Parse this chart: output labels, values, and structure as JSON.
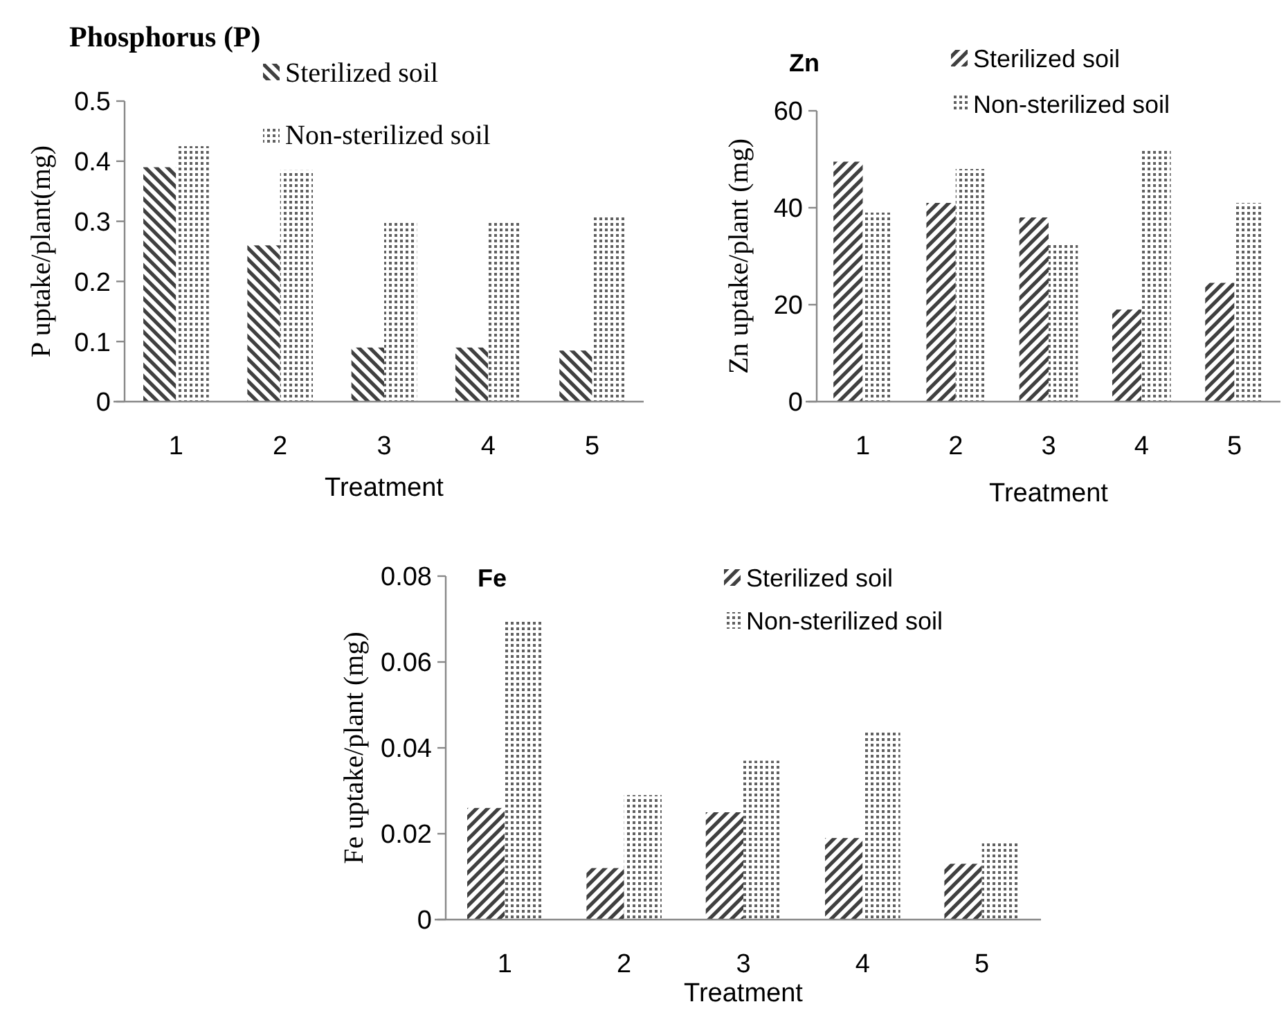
{
  "chart_data": [
    {
      "type": "bar",
      "title": "Phosphorus (P)",
      "xlabel": "Treatment",
      "ylabel": "P uptake/plant(mg)",
      "categories": [
        "1",
        "2",
        "3",
        "4",
        "5"
      ],
      "ylim": [
        0,
        0.5
      ],
      "yticks": [
        0,
        0.1,
        0.2,
        0.3,
        0.4,
        0.5
      ],
      "legend": "top right",
      "grid": false,
      "series": [
        {
          "name": "Sterilized soil",
          "color": "#404040",
          "values": [
            0.39,
            0.26,
            0.09,
            0.09,
            0.085
          ]
        },
        {
          "name": "Non-sterilized soil",
          "color": "#606060",
          "values": [
            0.425,
            0.385,
            0.3,
            0.3,
            0.31
          ]
        }
      ]
    },
    {
      "type": "bar",
      "title": "Zn",
      "xlabel": "Treatment",
      "ylabel": "Zn uptake/plant (mg)",
      "categories": [
        "1",
        "2",
        "3",
        "4",
        "5"
      ],
      "ylim": [
        0,
        60
      ],
      "yticks": [
        0,
        20,
        40,
        60
      ],
      "legend": "top right",
      "grid": false,
      "series": [
        {
          "name": "Sterilized soil",
          "color": "#404040",
          "values": [
            49.5,
            41,
            38,
            19,
            24.5
          ]
        },
        {
          "name": "Non-sterilized soil",
          "color": "#606060",
          "values": [
            39,
            48,
            32.5,
            52,
            41
          ]
        }
      ]
    },
    {
      "type": "bar",
      "title": "Fe",
      "xlabel": "Treatment",
      "ylabel": "Fe uptake/plant (mg)",
      "categories": [
        "1",
        "2",
        "3",
        "4",
        "5"
      ],
      "ylim": [
        0,
        0.08
      ],
      "yticks": [
        0,
        0.02,
        0.04,
        0.06,
        0.08
      ],
      "legend": "top right",
      "grid": false,
      "series": [
        {
          "name": "Sterilized soil",
          "color": "#404040",
          "values": [
            0.026,
            0.012,
            0.025,
            0.019,
            0.013
          ]
        },
        {
          "name": "Non-sterilized soil",
          "color": "#606060",
          "values": [
            0.07,
            0.029,
            0.037,
            0.044,
            0.018
          ]
        }
      ]
    }
  ]
}
